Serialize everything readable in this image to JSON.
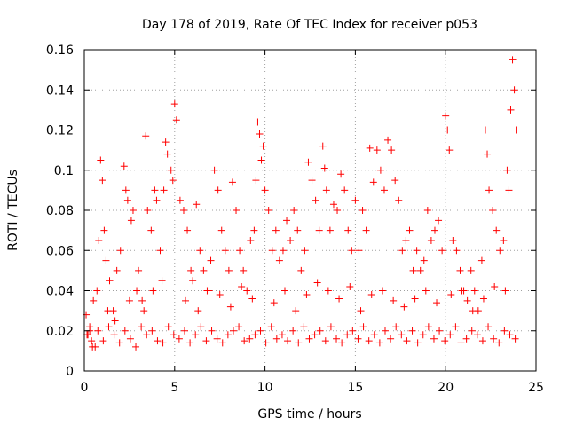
{
  "chart_data": {
    "type": "scatter",
    "title": "Day 178 of 2019, Rate Of TEC Index for receiver p053",
    "xlabel": "GPS time / hours",
    "ylabel": "ROTI / TECUs",
    "xlim": [
      0,
      25
    ],
    "ylim": [
      0,
      0.16
    ],
    "x_ticks": [
      "0",
      "5",
      "10",
      "15",
      "20",
      "25"
    ],
    "y_ticks": [
      "0",
      "0.02",
      "0.04",
      "0.06",
      "0.08",
      "0.1",
      "0.12",
      "0.14",
      "0.16"
    ],
    "grid": true,
    "marker": "+",
    "color": "#ff0000",
    "series": [
      {
        "name": "ROTI",
        "x": [
          0.1,
          0.2,
          0.3,
          0.4,
          0.5,
          0.6,
          0.8,
          0.9,
          1.0,
          1.1,
          1.2,
          1.4,
          1.6,
          1.8,
          2.0,
          2.2,
          2.3,
          2.4,
          2.6,
          2.7,
          2.9,
          3.0,
          3.2,
          3.4,
          3.5,
          3.7,
          3.9,
          4.0,
          4.2,
          4.4,
          4.5,
          4.6,
          4.8,
          4.9,
          5.0,
          5.1,
          5.3,
          5.5,
          5.7,
          5.9,
          6.0,
          6.2,
          6.4,
          6.6,
          6.8,
          7.0,
          7.2,
          7.4,
          7.6,
          7.8,
          8.0,
          8.2,
          8.4,
          8.6,
          8.8,
          9.0,
          9.2,
          9.4,
          9.5,
          9.6,
          9.7,
          9.8,
          9.9,
          10.0,
          10.2,
          10.4,
          10.6,
          10.8,
          11.0,
          11.2,
          11.4,
          11.6,
          11.8,
          12.0,
          12.2,
          12.4,
          12.6,
          12.8,
          13.0,
          13.2,
          13.3,
          13.4,
          13.6,
          13.8,
          14.0,
          14.2,
          14.4,
          14.6,
          14.8,
          15.0,
          15.2,
          15.4,
          15.6,
          15.8,
          16.0,
          16.2,
          16.4,
          16.6,
          16.8,
          17.0,
          17.2,
          17.4,
          17.6,
          17.8,
          18.0,
          18.2,
          18.4,
          18.6,
          18.8,
          19.0,
          19.2,
          19.4,
          19.6,
          19.8,
          20.0,
          20.1,
          20.2,
          20.4,
          20.6,
          20.8,
          21.0,
          21.2,
          21.4,
          21.6,
          21.8,
          22.0,
          22.2,
          22.3,
          22.4,
          22.6,
          22.8,
          23.0,
          23.2,
          23.4,
          23.5,
          23.6,
          23.7,
          23.8,
          23.9,
          0.3,
          0.7,
          1.3,
          1.7,
          2.5,
          3.3,
          3.8,
          4.3,
          5.6,
          6.3,
          6.9,
          7.5,
          8.1,
          8.7,
          9.3,
          10.5,
          11.1,
          11.7,
          12.3,
          12.9,
          13.5,
          14.1,
          14.7,
          15.3,
          15.9,
          16.5,
          17.1,
          17.7,
          18.3,
          18.9,
          19.5,
          20.3,
          20.9,
          21.5,
          22.1,
          22.7,
          23.3,
          0.15,
          0.45,
          0.75,
          1.05,
          1.35,
          1.65,
          1.95,
          2.25,
          2.55,
          2.85,
          3.15,
          3.45,
          3.75,
          4.05,
          4.35,
          4.65,
          4.95,
          5.25,
          5.55,
          5.85,
          6.15,
          6.45,
          6.75,
          7.05,
          7.35,
          7.65,
          7.95,
          8.25,
          8.55,
          8.85,
          9.15,
          9.45,
          9.75,
          10.05,
          10.35,
          10.65,
          10.95,
          11.25,
          11.55,
          11.85,
          12.15,
          12.45,
          12.75,
          13.05,
          13.35,
          13.65,
          13.95,
          14.25,
          14.55,
          14.85,
          15.15,
          15.45,
          15.75,
          16.05,
          16.35,
          16.65,
          16.95,
          17.25,
          17.55,
          17.85,
          18.15,
          18.45,
          18.75,
          19.05,
          19.35,
          19.65,
          19.95,
          20.25,
          20.55,
          20.85,
          21.15,
          21.45,
          21.75,
          22.05,
          22.35,
          22.65,
          22.95,
          23.25,
          23.55,
          23.85
        ],
        "y": [
          0.028,
          0.018,
          0.022,
          0.015,
          0.035,
          0.012,
          0.065,
          0.105,
          0.095,
          0.07,
          0.055,
          0.045,
          0.03,
          0.05,
          0.06,
          0.102,
          0.09,
          0.085,
          0.075,
          0.08,
          0.04,
          0.05,
          0.035,
          0.117,
          0.08,
          0.07,
          0.09,
          0.085,
          0.06,
          0.09,
          0.114,
          0.108,
          0.1,
          0.095,
          0.133,
          0.125,
          0.085,
          0.08,
          0.07,
          0.05,
          0.045,
          0.083,
          0.06,
          0.05,
          0.04,
          0.055,
          0.1,
          0.09,
          0.07,
          0.06,
          0.05,
          0.094,
          0.08,
          0.06,
          0.05,
          0.04,
          0.065,
          0.07,
          0.095,
          0.124,
          0.118,
          0.105,
          0.112,
          0.09,
          0.08,
          0.06,
          0.07,
          0.055,
          0.06,
          0.075,
          0.065,
          0.08,
          0.07,
          0.05,
          0.06,
          0.104,
          0.095,
          0.085,
          0.07,
          0.112,
          0.101,
          0.09,
          0.07,
          0.083,
          0.08,
          0.098,
          0.09,
          0.07,
          0.06,
          0.085,
          0.06,
          0.08,
          0.07,
          0.111,
          0.094,
          0.11,
          0.1,
          0.09,
          0.115,
          0.11,
          0.095,
          0.085,
          0.06,
          0.065,
          0.07,
          0.05,
          0.06,
          0.05,
          0.055,
          0.08,
          0.065,
          0.07,
          0.075,
          0.06,
          0.127,
          0.12,
          0.11,
          0.065,
          0.06,
          0.05,
          0.04,
          0.035,
          0.05,
          0.04,
          0.03,
          0.055,
          0.12,
          0.108,
          0.09,
          0.08,
          0.07,
          0.06,
          0.065,
          0.1,
          0.09,
          0.13,
          0.155,
          0.14,
          0.12,
          0.02,
          0.04,
          0.03,
          0.025,
          0.035,
          0.03,
          0.04,
          0.045,
          0.035,
          0.03,
          0.04,
          0.038,
          0.032,
          0.042,
          0.036,
          0.034,
          0.04,
          0.03,
          0.038,
          0.044,
          0.04,
          0.036,
          0.042,
          0.03,
          0.038,
          0.04,
          0.035,
          0.032,
          0.036,
          0.04,
          0.034,
          0.038,
          0.04,
          0.03,
          0.036,
          0.042,
          0.04,
          0.018,
          0.012,
          0.02,
          0.015,
          0.022,
          0.018,
          0.014,
          0.02,
          0.016,
          0.012,
          0.022,
          0.018,
          0.02,
          0.015,
          0.014,
          0.022,
          0.018,
          0.016,
          0.02,
          0.014,
          0.018,
          0.022,
          0.015,
          0.02,
          0.016,
          0.014,
          0.018,
          0.02,
          0.022,
          0.015,
          0.016,
          0.018,
          0.02,
          0.014,
          0.022,
          0.016,
          0.018,
          0.015,
          0.02,
          0.014,
          0.022,
          0.016,
          0.018,
          0.02,
          0.015,
          0.022,
          0.016,
          0.014,
          0.018,
          0.02,
          0.016,
          0.022,
          0.015,
          0.018,
          0.014,
          0.02,
          0.016,
          0.022,
          0.018,
          0.015,
          0.02,
          0.014,
          0.018,
          0.022,
          0.016,
          0.02,
          0.015,
          0.018,
          0.022,
          0.014,
          0.016,
          0.02,
          0.018,
          0.015,
          0.022,
          0.016,
          0.014,
          0.02,
          0.018,
          0.016
        ]
      }
    ]
  }
}
